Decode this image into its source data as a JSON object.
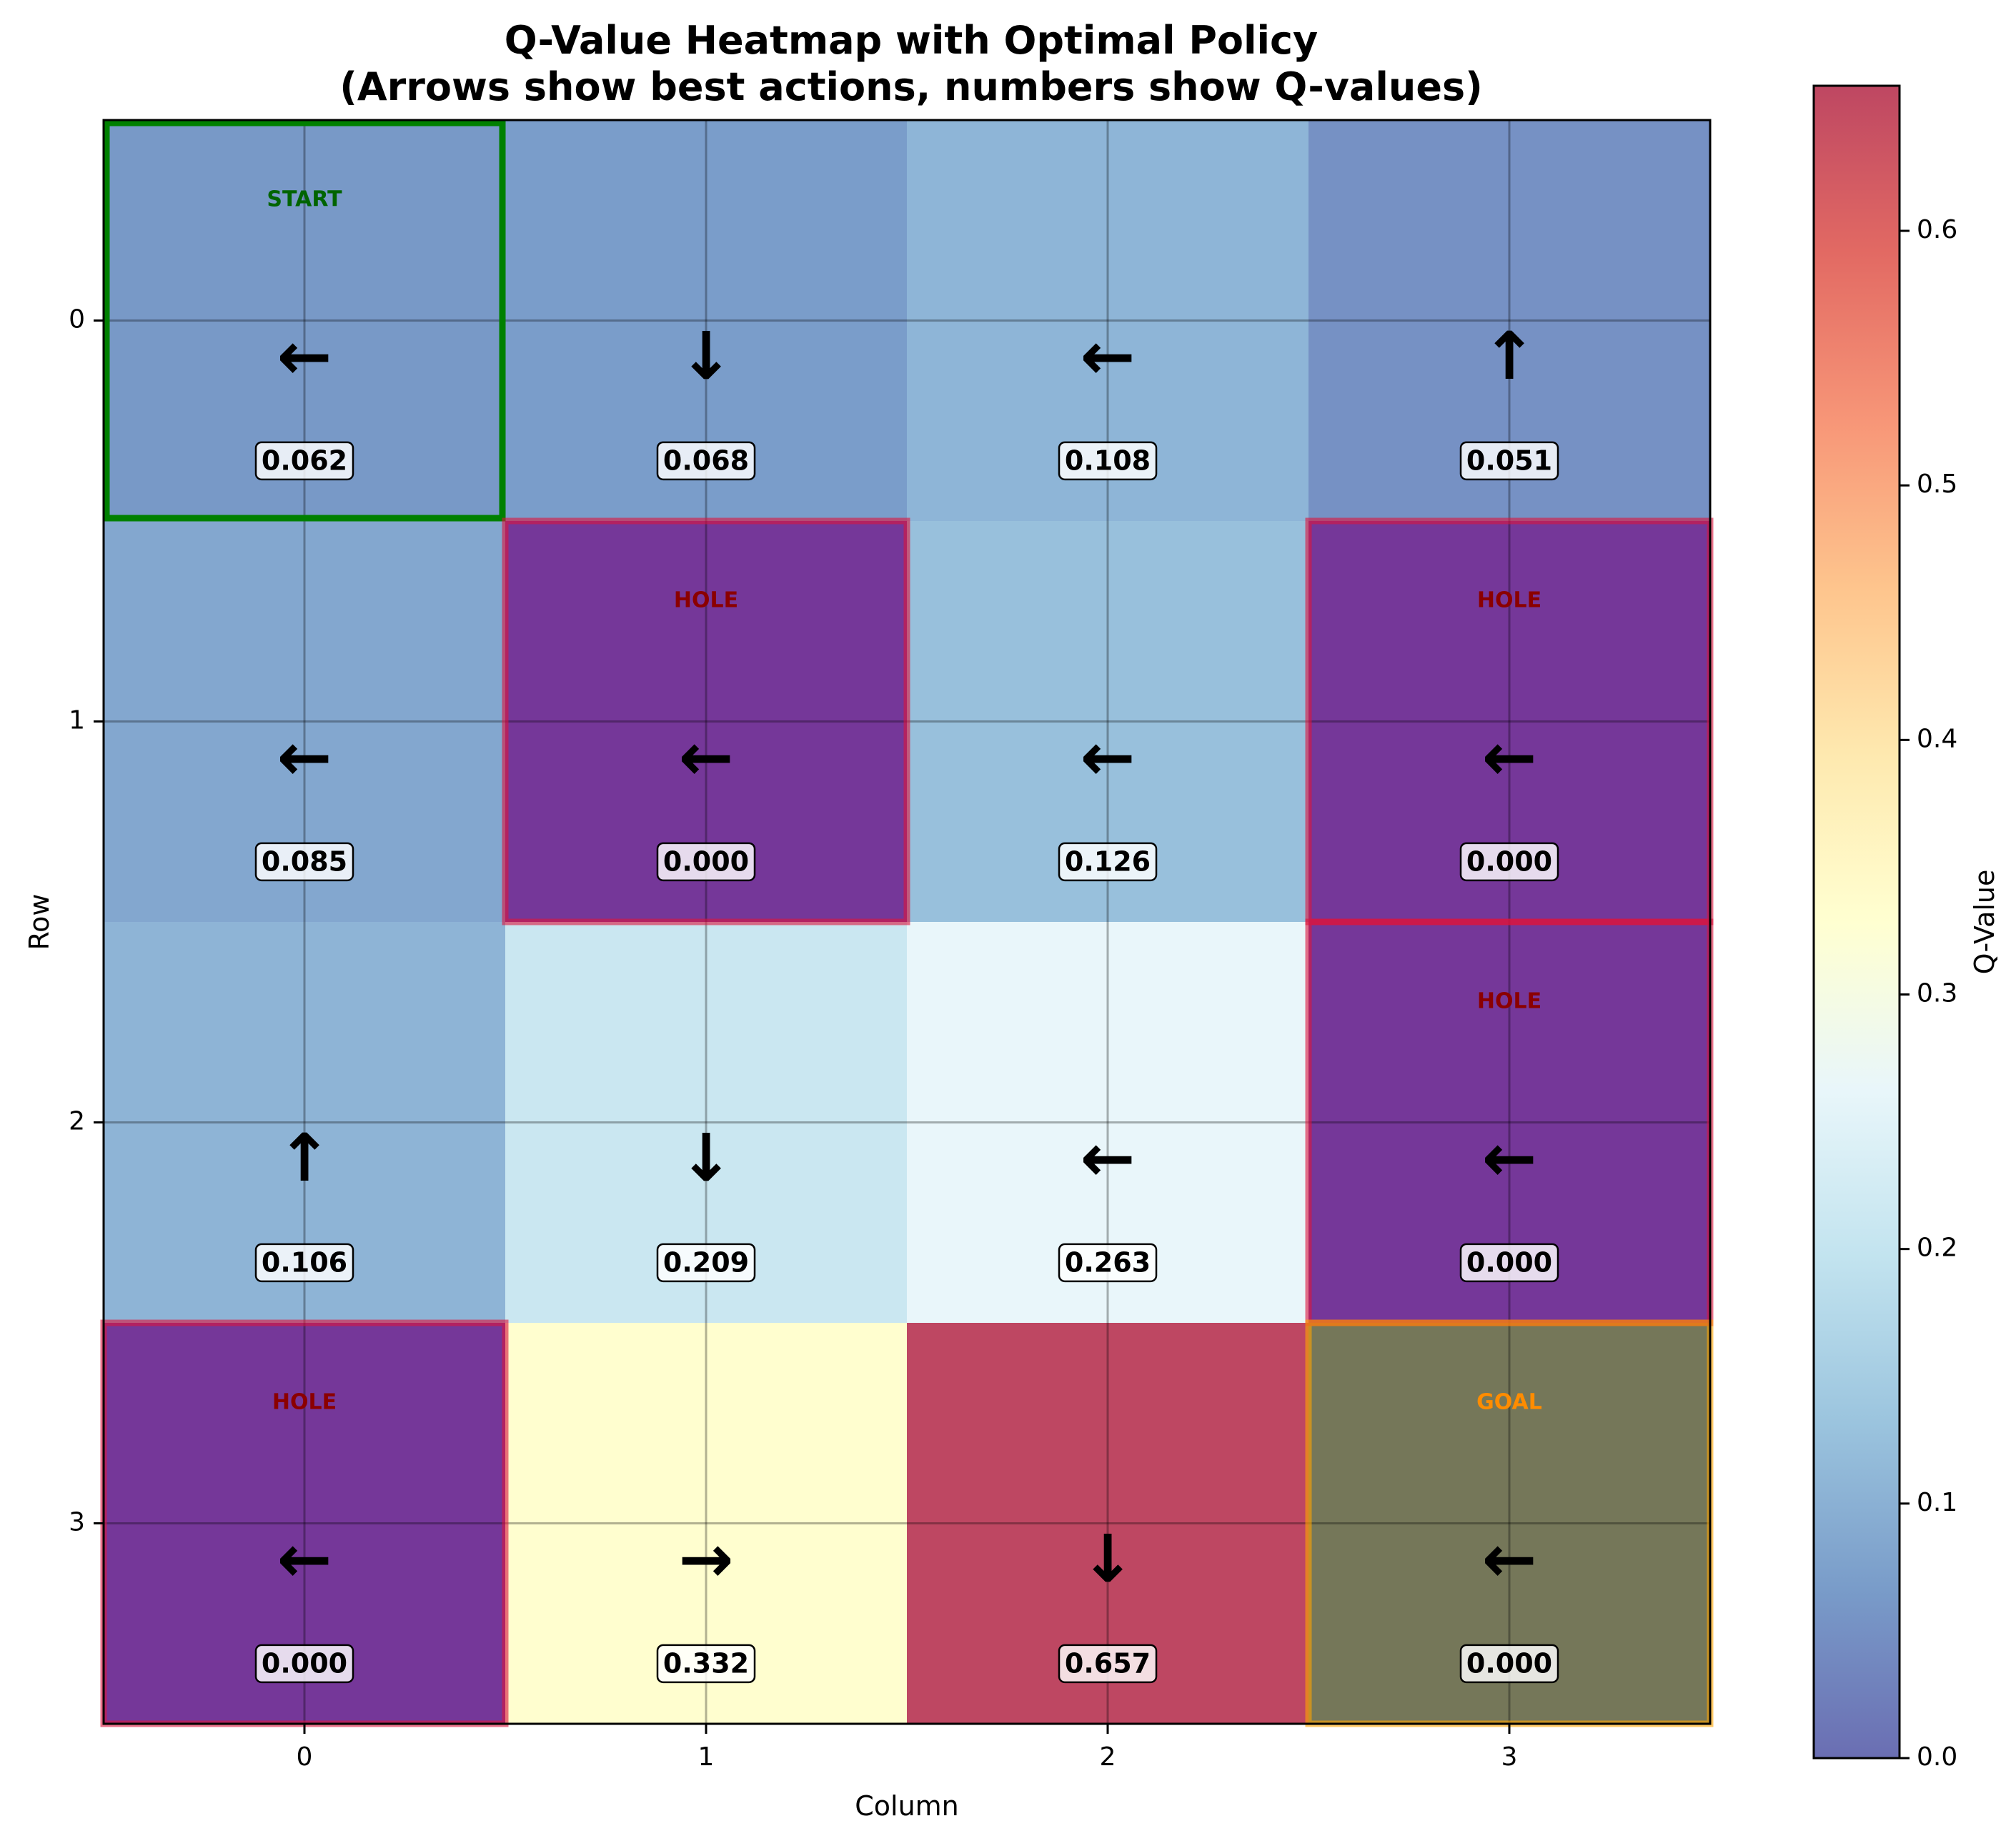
{
  "chart_data": {
    "type": "heatmap",
    "title": "Q-Value Heatmap with Optimal Policy",
    "subtitle": "(Arrows show best actions, numbers show Q-values)",
    "xlabel": "Column",
    "ylabel": "Row",
    "x_ticks": [
      "0",
      "1",
      "2",
      "3"
    ],
    "y_ticks": [
      "0",
      "1",
      "2",
      "3"
    ],
    "grid": true,
    "colorbar": {
      "label": "Q-Value",
      "range": [
        0.0,
        0.657
      ],
      "ticks": [
        "0.0",
        "0.1",
        "0.2",
        "0.3",
        "0.4",
        "0.5",
        "0.6"
      ],
      "tick_values": [
        0.0,
        0.1,
        0.2,
        0.3,
        0.4,
        0.5,
        0.6
      ],
      "colormap": "RdYlBu_r"
    },
    "cells": [
      [
        {
          "value": "0.062",
          "arrow": "←",
          "tag": "START"
        },
        {
          "value": "0.068",
          "arrow": "↓",
          "tag": ""
        },
        {
          "value": "0.108",
          "arrow": "←",
          "tag": ""
        },
        {
          "value": "0.051",
          "arrow": "↑",
          "tag": ""
        }
      ],
      [
        {
          "value": "0.085",
          "arrow": "←",
          "tag": ""
        },
        {
          "value": "0.000",
          "arrow": "←",
          "tag": "HOLE"
        },
        {
          "value": "0.126",
          "arrow": "←",
          "tag": ""
        },
        {
          "value": "0.000",
          "arrow": "←",
          "tag": "HOLE"
        }
      ],
      [
        {
          "value": "0.106",
          "arrow": "↑",
          "tag": ""
        },
        {
          "value": "0.209",
          "arrow": "↓",
          "tag": ""
        },
        {
          "value": "0.263",
          "arrow": "←",
          "tag": ""
        },
        {
          "value": "0.000",
          "arrow": "←",
          "tag": "HOLE"
        }
      ],
      [
        {
          "value": "0.000",
          "arrow": "←",
          "tag": "HOLE"
        },
        {
          "value": "0.332",
          "arrow": "→",
          "tag": ""
        },
        {
          "value": "0.657",
          "arrow": "↓",
          "tag": ""
        },
        {
          "value": "0.000",
          "arrow": "←",
          "tag": "GOAL"
        }
      ]
    ],
    "colors": {
      "start_border": "#008000",
      "start_text": "#006400",
      "hole_border": "#dc143c",
      "hole_text": "#8b0000",
      "goal_border": "#ffa500",
      "goal_text": "#ff8c00",
      "hole_overlay": "#800080",
      "goal_overlay": "#808000"
    }
  }
}
